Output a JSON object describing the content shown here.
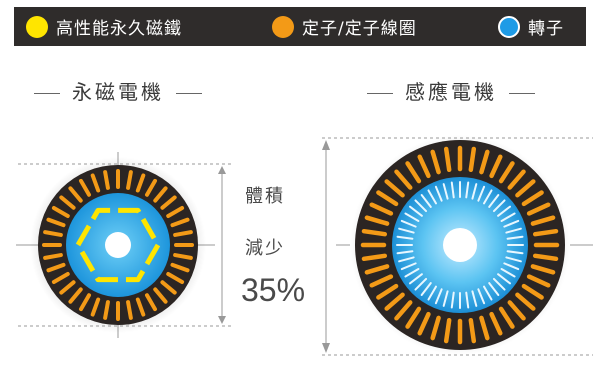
{
  "legend": {
    "items": [
      {
        "label": "高性能永久磁鐵",
        "color": "#ffe500",
        "icon": "yellow-dot"
      },
      {
        "label": "定子/定子線圈",
        "color": "#f39a17",
        "icon": "orange-dot"
      },
      {
        "label": "轉子",
        "color": "#1e9be6",
        "icon": "blue-dot"
      }
    ],
    "background": "#2f2c2b"
  },
  "left_title": "永磁電機",
  "right_title": "感應電機",
  "comparison": {
    "line1": "體積",
    "line2": "減少",
    "value": "35%"
  },
  "colors": {
    "stator_coil": "#f39a17",
    "rotor": "#1e9be6",
    "magnet": "#ffe500",
    "housing": "#2b2523"
  }
}
